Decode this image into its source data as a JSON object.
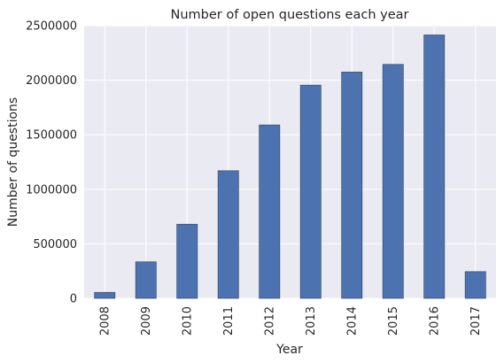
{
  "chart_data": {
    "type": "bar",
    "title": "Number of open questions each year",
    "xlabel": "Year",
    "ylabel": "Number of questions",
    "categories": [
      "2008",
      "2009",
      "2010",
      "2011",
      "2012",
      "2013",
      "2014",
      "2015",
      "2016",
      "2017"
    ],
    "values": [
      55000,
      335000,
      680000,
      1170000,
      1590000,
      1955000,
      2075000,
      2145000,
      2415000,
      245000
    ],
    "ylim": [
      0,
      2500000
    ],
    "yticks": [
      "0",
      "500000",
      "1000000",
      "1500000",
      "2000000",
      "2500000"
    ],
    "grid": true,
    "legend": "none",
    "colors": {
      "bar": "#4c72b0",
      "bar_edge": "#2f3f5f",
      "plot_bg": "#eaeaf2",
      "grid": "#ffffff"
    }
  }
}
